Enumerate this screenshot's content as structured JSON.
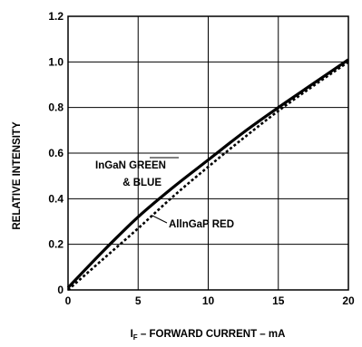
{
  "chart_data": {
    "type": "line",
    "xlabel_main": "I",
    "xlabel_sub": "F",
    "xlabel_rest": " – FORWARD CURRENT – mA",
    "ylabel": "RELATIVE INTENSITY",
    "xlim": [
      0,
      20
    ],
    "ylim": [
      0,
      1.2
    ],
    "grid": true,
    "x_ticks": [
      0,
      5,
      10,
      15,
      20
    ],
    "x_tick_labels": [
      "0",
      "5",
      "10",
      "15",
      "20"
    ],
    "y_ticks": [
      0,
      0.2,
      0.4,
      0.6,
      0.8,
      1.0,
      1.2
    ],
    "y_tick_labels": [
      "0",
      "0.2",
      "0.4",
      "0.6",
      "0.8",
      "1.0",
      "1.2"
    ],
    "series": [
      {
        "name_line1": "InGaN GREEN",
        "name_line2": "& BLUE",
        "style": "solid",
        "color": "#000000",
        "x": [
          0,
          2.5,
          5,
          7.5,
          10,
          12.5,
          15,
          17.5,
          20
        ],
        "y": [
          0.01,
          0.17,
          0.32,
          0.45,
          0.57,
          0.69,
          0.8,
          0.905,
          1.01
        ]
      },
      {
        "name": "AllnGaP RED",
        "style": "dotted",
        "color": "#000000",
        "x": [
          0,
          2.5,
          5,
          7.5,
          10,
          12.5,
          15,
          17.5,
          20
        ],
        "y": [
          0.0,
          0.135,
          0.27,
          0.41,
          0.54,
          0.665,
          0.785,
          0.895,
          1.0
        ]
      }
    ]
  }
}
